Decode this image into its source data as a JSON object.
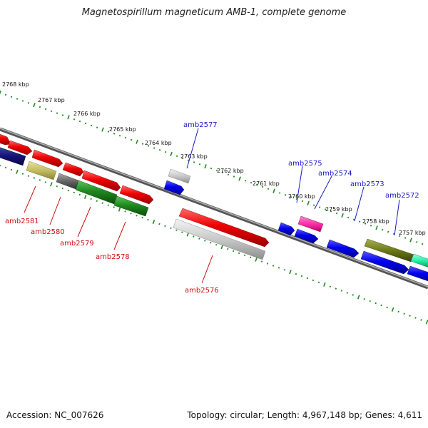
{
  "title": "Magnetospirillum magneticum AMB-1, complete genome",
  "footer": {
    "accession": "Accession: NC_007626",
    "summary": "Topology: circular; Length: 4,967,148 bp; Genes: 4,611"
  },
  "colors": {
    "backbone": "#8a8a8a",
    "ruler": "#1f8a1f",
    "label_top": "#1a1acc",
    "label_bottom": "#cc1111"
  },
  "ruler_labels": [
    "2768 kbp",
    "2767 kbp",
    "2766 kbp",
    "2765 kbp",
    "2764 kbp",
    "2763 kbp",
    "2762 kbp",
    "2761 kbp",
    "2760 kbp",
    "2759 kbp",
    "2758 kbp",
    "2757 kbp"
  ],
  "gene_labels_top": [
    "amb2577",
    "amb2575",
    "amb2574",
    "amb2573",
    "amb2572"
  ],
  "gene_labels_bottom": [
    "amb2581",
    "amb2580",
    "amb2579",
    "amb2578",
    "amb2576"
  ]
}
